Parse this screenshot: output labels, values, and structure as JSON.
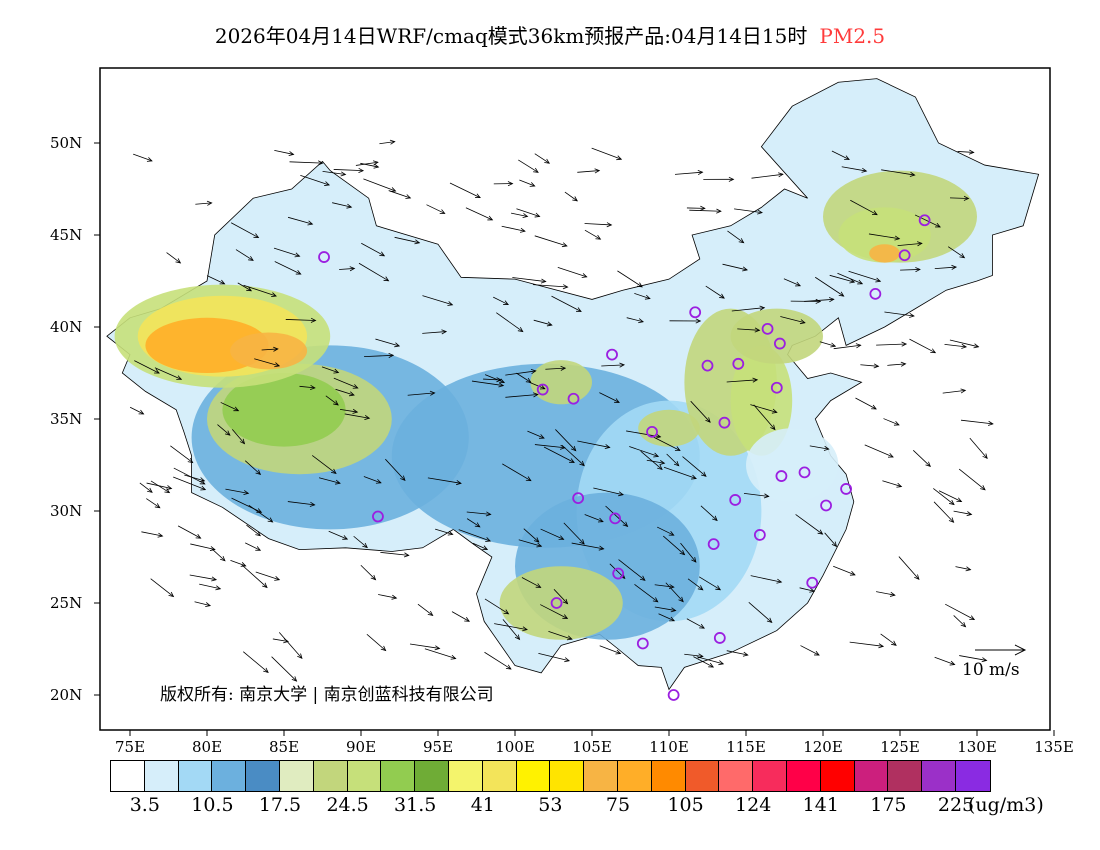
{
  "title": {
    "main": "2026年04月14日WRF/cmaq模式36km预报产品:04月14日15时",
    "species": "PM2.5",
    "species_color": "#ff3b3b"
  },
  "axes": {
    "lat_labels": [
      "50N",
      "45N",
      "40N",
      "35N",
      "30N",
      "25N",
      "20N"
    ],
    "lon_labels": [
      "75E",
      "80E",
      "85E",
      "90E",
      "95E",
      "100E",
      "105E",
      "110E",
      "115E",
      "120E",
      "125E",
      "130E",
      "135E"
    ]
  },
  "copyright": "版权所有: 南京大学 | 南京创蓝科技有限公司",
  "wind_legend": "10 m/s",
  "colorbar": {
    "colors": [
      "#ffffff",
      "#d6eefa",
      "#a3d9f5",
      "#6cb0de",
      "#4a8cc4",
      "#e0ecc0",
      "#c2d67c",
      "#c6e07a",
      "#92cc50",
      "#6fac36",
      "#f4f46c",
      "#f3e45a",
      "#fff200",
      "#ffe400",
      "#f7b444",
      "#ffae28",
      "#ff8a00",
      "#f05a2a",
      "#ff6a6a",
      "#f72c5c",
      "#ff0048",
      "#ff0000",
      "#cc1f7d",
      "#b03060",
      "#9b30c8",
      "#8a2be2"
    ],
    "labels": [
      "3.5",
      "10.5",
      "17.5",
      "24.5",
      "31.5",
      "41",
      "53",
      "75",
      "105",
      "124",
      "141",
      "175",
      "225"
    ],
    "unit": "(ug/m3)"
  }
}
